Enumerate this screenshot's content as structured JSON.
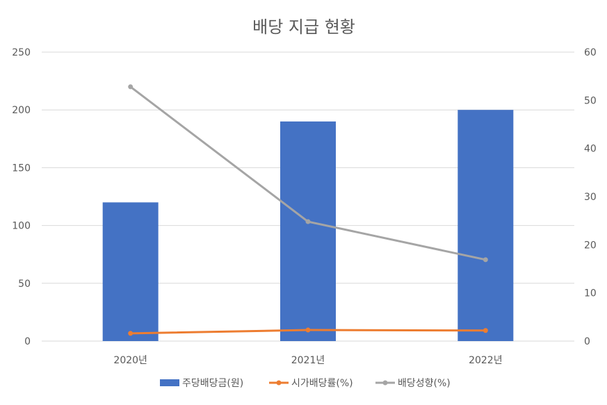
{
  "chart_data": {
    "type": "bar",
    "title": "배당 지급 현황",
    "categories": [
      "2020년",
      "2021년",
      "2022년"
    ],
    "y_left": {
      "range": [
        0,
        250
      ],
      "ticks": [
        "0",
        "50",
        "100",
        "150",
        "200",
        "250"
      ]
    },
    "y_right": {
      "range": [
        0,
        60
      ],
      "ticks": [
        "0",
        "10",
        "20",
        "30",
        "40",
        "50",
        "60"
      ]
    },
    "grid": true,
    "legend_position": "bottom",
    "series": [
      {
        "name": "주당배당금(원)",
        "type": "bar",
        "axis": "left",
        "color": "#4472C4",
        "values": [
          120,
          190,
          200
        ]
      },
      {
        "name": "시가배당률(%)",
        "type": "line",
        "axis": "right",
        "color": "#ED7D31",
        "values": [
          1.6,
          2.3,
          2.2
        ]
      },
      {
        "name": "배당성향(%)",
        "type": "line",
        "axis": "right",
        "color": "#A5A5A5",
        "values": [
          52.8,
          24.8,
          16.9
        ]
      }
    ]
  }
}
